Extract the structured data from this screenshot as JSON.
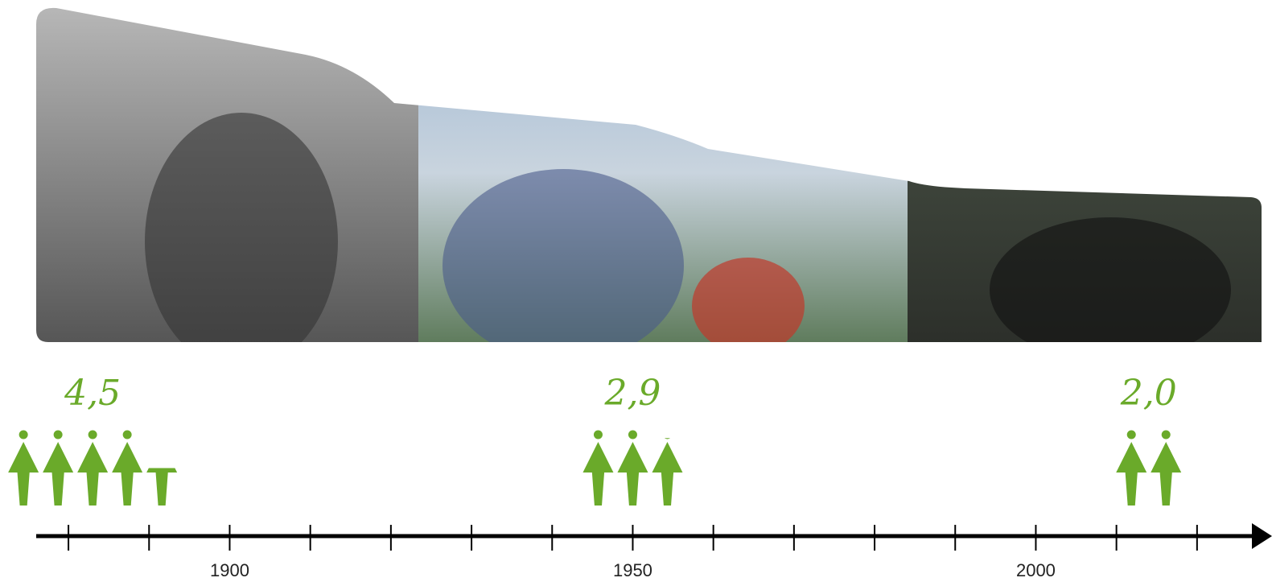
{
  "chart_data": {
    "type": "pictograph",
    "x": [
      1883,
      1950,
      2014
    ],
    "values": [
      4.5,
      2.9,
      2.0
    ],
    "value_labels": [
      "4,5",
      "2,9",
      "2,0"
    ],
    "color": "#6aaa2a",
    "xlim": [
      1876,
      2028
    ],
    "xticks": [
      1900,
      1950,
      2000
    ],
    "xminorticks": [
      1880,
      1890,
      1900,
      1910,
      1920,
      1930,
      1940,
      1950,
      1960,
      1970,
      1980,
      1990,
      2000,
      2010,
      2020
    ]
  }
}
